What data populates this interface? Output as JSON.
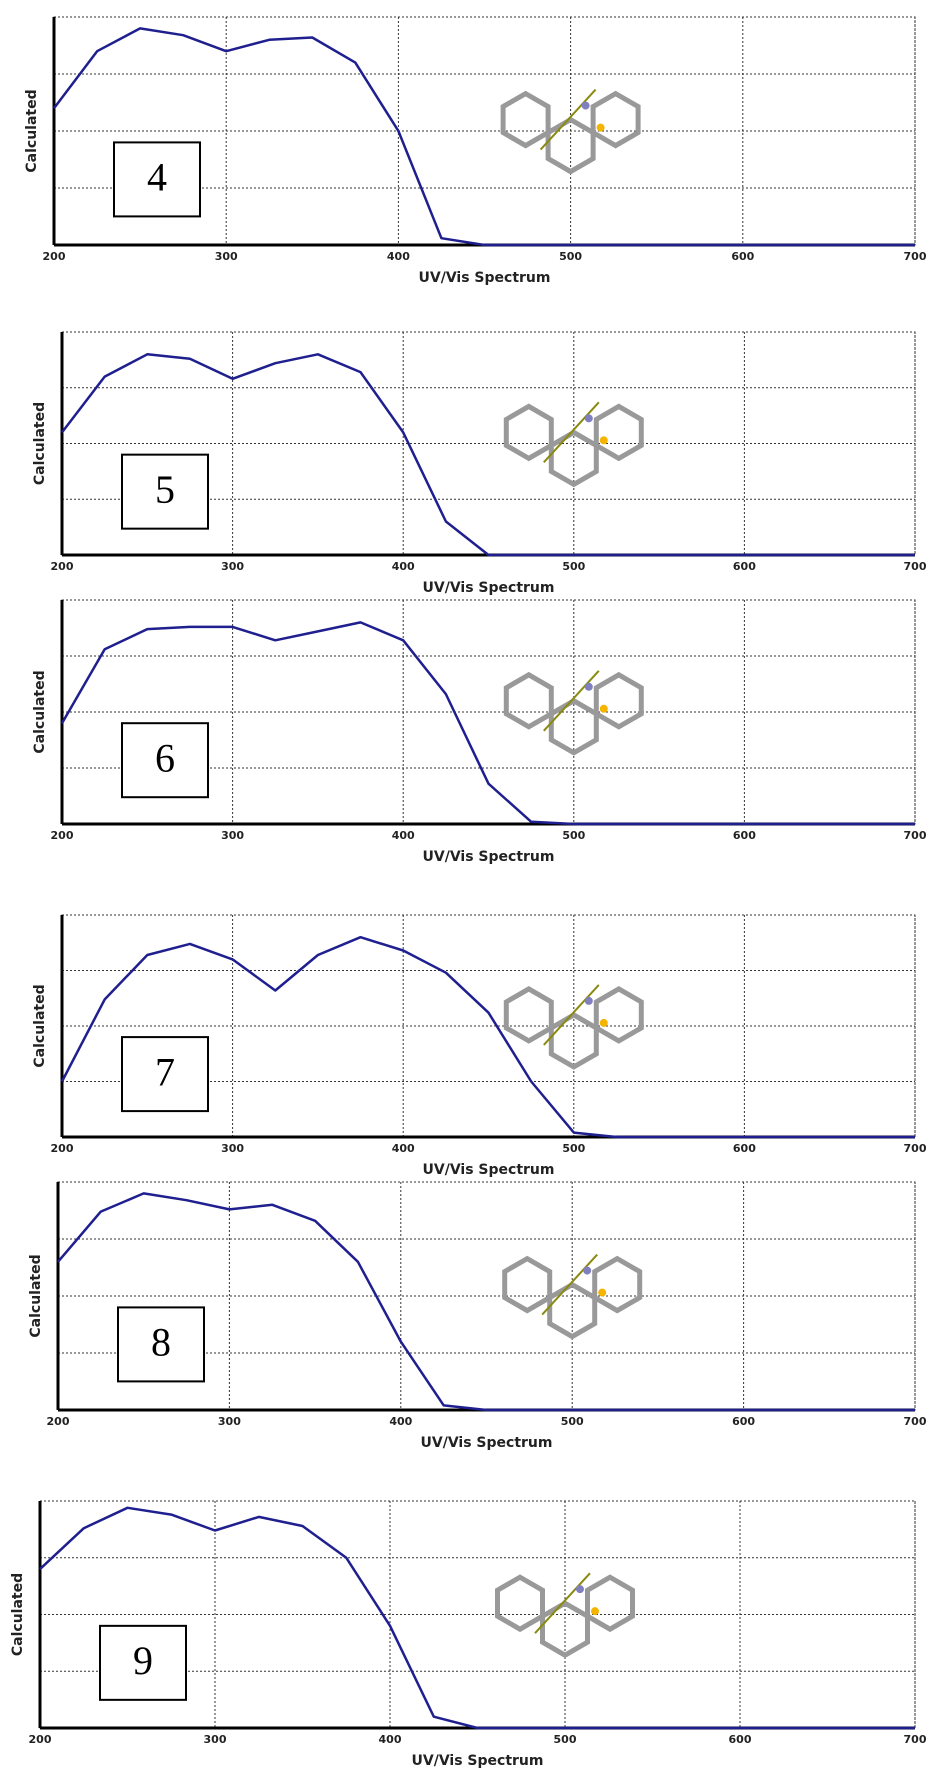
{
  "chart_data": [
    {
      "type": "line",
      "label": "4",
      "xlabel": "UV/Vis Spectrum",
      "ylabel": "Calculated",
      "color": "#1f1f8f",
      "grid": true,
      "x": [
        200,
        225,
        250,
        275,
        300,
        325,
        350,
        375,
        400,
        425,
        450,
        475,
        500,
        525,
        550,
        575,
        600,
        625,
        650,
        675,
        700
      ],
      "values": [
        0.6,
        0.85,
        0.95,
        0.92,
        0.85,
        0.9,
        0.91,
        0.8,
        0.5,
        0.03,
        0,
        0,
        0,
        0,
        0,
        0,
        0,
        0,
        0,
        0,
        0
      ],
      "xlim": [
        200,
        700
      ],
      "ylim": [
        0,
        1
      ],
      "xticks": [
        200,
        300,
        400,
        500,
        600,
        700
      ]
    },
    {
      "type": "line",
      "label": "5",
      "xlabel": "UV/Vis Spectrum",
      "ylabel": "Calculated",
      "color": "#1f1f8f",
      "grid": true,
      "x": [
        200,
        225,
        250,
        275,
        300,
        325,
        350,
        375,
        400,
        425,
        450,
        475,
        500,
        525,
        550,
        575,
        600,
        625,
        650,
        675,
        700
      ],
      "values": [
        0.55,
        0.8,
        0.9,
        0.88,
        0.79,
        0.86,
        0.9,
        0.82,
        0.55,
        0.15,
        0,
        0,
        0,
        0,
        0,
        0,
        0,
        0,
        0,
        0,
        0
      ],
      "xlim": [
        200,
        700
      ],
      "ylim": [
        0,
        1
      ],
      "xticks": [
        200,
        300,
        400,
        500,
        600,
        700
      ]
    },
    {
      "type": "line",
      "label": "6",
      "xlabel": "UV/Vis Spectrum",
      "ylabel": "Calculated",
      "color": "#1f1f8f",
      "grid": true,
      "x": [
        200,
        225,
        250,
        275,
        300,
        325,
        350,
        375,
        400,
        425,
        450,
        475,
        500,
        525,
        550,
        575,
        600,
        625,
        650,
        675,
        700
      ],
      "values": [
        0.45,
        0.78,
        0.87,
        0.88,
        0.88,
        0.82,
        0.86,
        0.9,
        0.82,
        0.58,
        0.18,
        0.01,
        0,
        0,
        0,
        0,
        0,
        0,
        0,
        0,
        0
      ],
      "xlim": [
        200,
        700
      ],
      "ylim": [
        0,
        1
      ],
      "xticks": [
        200,
        300,
        400,
        500,
        600,
        700
      ]
    },
    {
      "type": "line",
      "label": "7",
      "xlabel": "UV/Vis Spectrum",
      "ylabel": "Calculated",
      "color": "#1f1f8f",
      "grid": true,
      "x": [
        200,
        225,
        250,
        275,
        300,
        325,
        350,
        375,
        400,
        425,
        450,
        475,
        500,
        525,
        550,
        575,
        600,
        625,
        650,
        675,
        700
      ],
      "values": [
        0.25,
        0.62,
        0.82,
        0.87,
        0.8,
        0.66,
        0.82,
        0.9,
        0.84,
        0.74,
        0.56,
        0.25,
        0.02,
        0,
        0,
        0,
        0,
        0,
        0,
        0,
        0
      ],
      "xlim": [
        200,
        700
      ],
      "ylim": [
        0,
        1
      ],
      "xticks": [
        200,
        300,
        400,
        500,
        600,
        700
      ]
    },
    {
      "type": "line",
      "label": "8",
      "xlabel": "UV/Vis Spectrum",
      "ylabel": "Calculated",
      "color": "#1f1f8f",
      "grid": true,
      "x": [
        200,
        225,
        250,
        275,
        300,
        325,
        350,
        375,
        400,
        425,
        450,
        475,
        500,
        525,
        550,
        575,
        600,
        625,
        650,
        675,
        700
      ],
      "values": [
        0.65,
        0.87,
        0.95,
        0.92,
        0.88,
        0.9,
        0.83,
        0.65,
        0.3,
        0.02,
        0,
        0,
        0,
        0,
        0,
        0,
        0,
        0,
        0,
        0,
        0
      ],
      "xlim": [
        200,
        700
      ],
      "ylim": [
        0,
        1
      ],
      "xticks": [
        200,
        300,
        400,
        500,
        600,
        700
      ]
    },
    {
      "type": "line",
      "label": "9",
      "xlabel": "UV/Vis Spectrum",
      "ylabel": "Calculated",
      "color": "#1f1f8f",
      "grid": true,
      "x": [
        200,
        225,
        250,
        275,
        300,
        325,
        350,
        375,
        400,
        425,
        450,
        475,
        500,
        525,
        550,
        575,
        600,
        625,
        650,
        675,
        700
      ],
      "values": [
        0.7,
        0.88,
        0.97,
        0.94,
        0.87,
        0.93,
        0.89,
        0.75,
        0.45,
        0.05,
        0,
        0,
        0,
        0,
        0,
        0,
        0,
        0,
        0,
        0,
        0
      ],
      "xlim": [
        200,
        700
      ],
      "ylim": [
        0,
        1
      ],
      "xticks": [
        200,
        300,
        400,
        500,
        600,
        700
      ]
    }
  ]
}
